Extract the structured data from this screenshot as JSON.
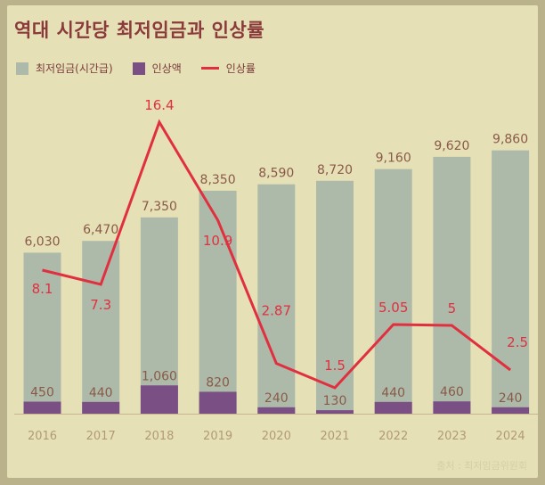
{
  "title": "역대 시간당 최저임금과 인상률",
  "legend": {
    "wage": "최저임금(시간급)",
    "increase": "인상액",
    "rate": "인상률"
  },
  "source": "출처 : 최저임금위원회",
  "colors": {
    "wage_bar": "#aebaa9",
    "increase_bar": "#7a4f83",
    "rate_line": "#e03040",
    "label_brown": "#8a5a48",
    "label_red": "#e03040",
    "axis_label": "#b29a78"
  },
  "chart_data": {
    "type": "bar",
    "title": "역대 시간당 최저임금과 인상률",
    "categories": [
      "2016",
      "2017",
      "2018",
      "2019",
      "2020",
      "2021",
      "2022",
      "2023",
      "2024"
    ],
    "series": [
      {
        "name": "최저임금(시간급)",
        "type": "bar",
        "values": [
          6030,
          6470,
          7350,
          8350,
          8590,
          8720,
          9160,
          9620,
          9860
        ],
        "labels": [
          "6,030",
          "6,470",
          "7,350",
          "8,350",
          "8,590",
          "8,720",
          "9,160",
          "9,620",
          "9,860"
        ]
      },
      {
        "name": "인상액",
        "type": "bar",
        "values": [
          450,
          440,
          1060,
          820,
          240,
          130,
          440,
          460,
          240
        ],
        "labels": [
          "450",
          "440",
          "1,060",
          "820",
          "240",
          "130",
          "440",
          "460",
          "240"
        ]
      },
      {
        "name": "인상률",
        "type": "line",
        "values": [
          8.1,
          7.3,
          16.4,
          10.9,
          2.87,
          1.5,
          5.05,
          5,
          2.5
        ],
        "labels": [
          "8.1",
          "7.3",
          "16.4",
          "10.9",
          "2.87",
          "1.5",
          "5.05",
          "5",
          "2.5"
        ]
      }
    ],
    "ylim_bar": [
      0,
      10800
    ],
    "ylim_rate": [
      0,
      20
    ]
  }
}
